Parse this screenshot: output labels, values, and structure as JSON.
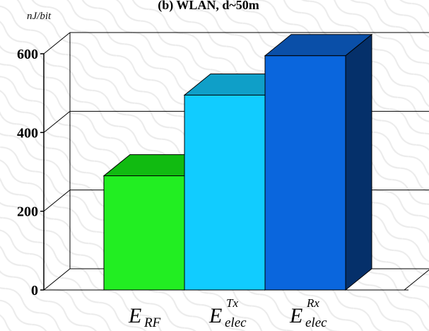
{
  "chart_data": {
    "type": "bar",
    "title": "(b) WLAN, d~50m",
    "ylabel": "nJ/bit",
    "xlabel": "",
    "ylim": [
      0,
      600
    ],
    "yticks": [
      "0",
      "200",
      "400",
      "600"
    ],
    "grid": true,
    "categories": [
      {
        "main": "E",
        "sub": "RF",
        "sup": ""
      },
      {
        "main": "E",
        "sub": "elec",
        "sup": "Tx"
      },
      {
        "main": "E",
        "sub": "elec",
        "sup": "Rx"
      }
    ],
    "values": [
      290,
      495,
      595
    ],
    "colors": [
      {
        "front": "#22ee22",
        "top": "#11bb11",
        "side": "#0a7a0a"
      },
      {
        "front": "#11ccff",
        "top": "#0f9fc8",
        "side": "#086e8c"
      },
      {
        "front": "#0a66dd",
        "top": "#0a4fa8",
        "side": "#05306a"
      }
    ]
  }
}
